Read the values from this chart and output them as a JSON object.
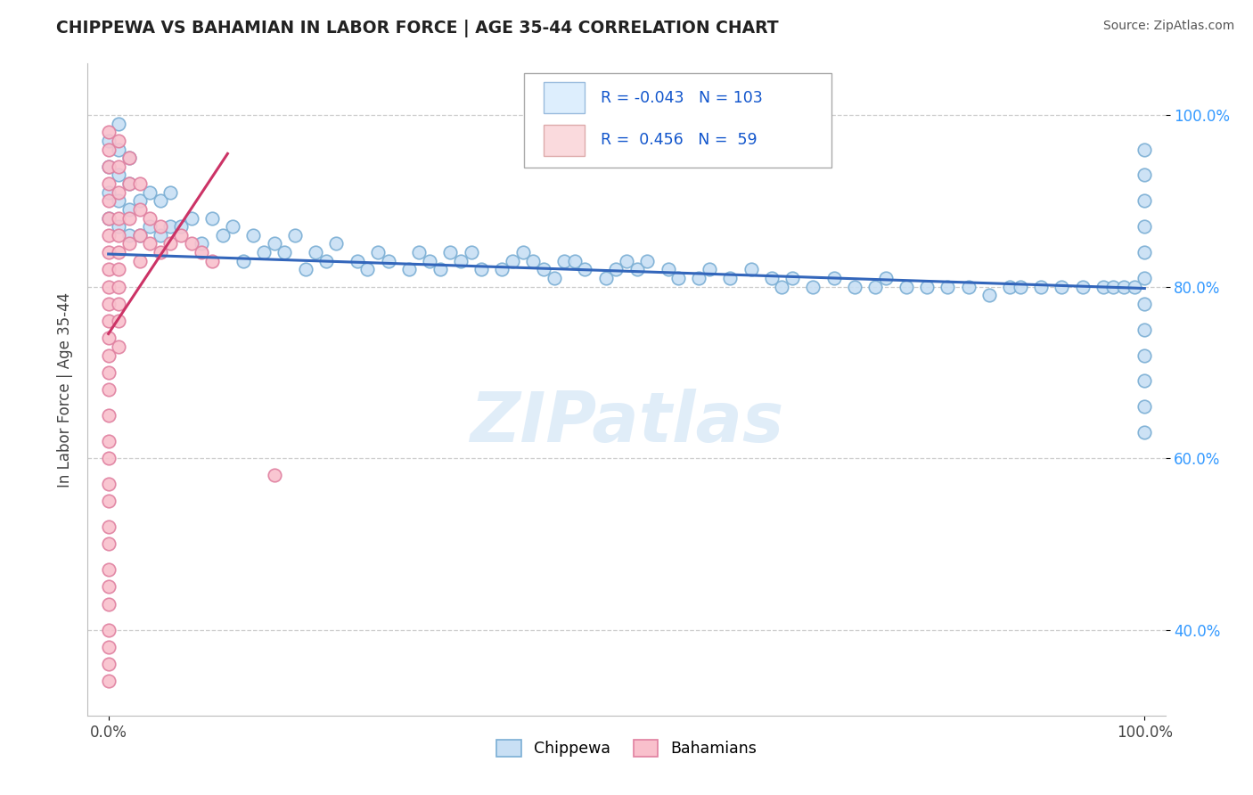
{
  "title": "CHIPPEWA VS BAHAMIAN IN LABOR FORCE | AGE 35-44 CORRELATION CHART",
  "source_text": "Source: ZipAtlas.com",
  "ylabel": "In Labor Force | Age 35-44",
  "xlim": [
    -0.02,
    1.02
  ],
  "ylim": [
    0.3,
    1.06
  ],
  "y_ticks": [
    0.4,
    0.6,
    0.8,
    1.0
  ],
  "y_tick_labels": [
    "40.0%",
    "60.0%",
    "80.0%",
    "100.0%"
  ],
  "watermark": "ZIPatlas",
  "chippewa_fill": "#c8dff4",
  "chippewa_edge": "#7aaed4",
  "bahamian_fill": "#f9c0cc",
  "bahamian_edge": "#e080a0",
  "chippewa_line_color": "#3366bb",
  "bahamian_line_color": "#cc3366",
  "legend_box_color": "#ddeefd",
  "legend_pink_color": "#fadadd",
  "tick_color": "#3399ff",
  "blue_trend_x": [
    0.0,
    1.0
  ],
  "blue_trend_y": [
    0.838,
    0.798
  ],
  "pink_trend_x": [
    0.0,
    0.115
  ],
  "pink_trend_y": [
    0.745,
    0.955
  ],
  "chippewa_x": [
    0.0,
    0.0,
    0.0,
    0.0,
    0.01,
    0.01,
    0.01,
    0.01,
    0.01,
    0.02,
    0.02,
    0.02,
    0.02,
    0.03,
    0.03,
    0.04,
    0.04,
    0.05,
    0.05,
    0.06,
    0.06,
    0.07,
    0.08,
    0.09,
    0.1,
    0.11,
    0.12,
    0.13,
    0.14,
    0.15,
    0.16,
    0.17,
    0.18,
    0.19,
    0.2,
    0.21,
    0.22,
    0.24,
    0.25,
    0.26,
    0.27,
    0.29,
    0.3,
    0.31,
    0.32,
    0.33,
    0.34,
    0.35,
    0.36,
    0.38,
    0.39,
    0.4,
    0.41,
    0.42,
    0.43,
    0.44,
    0.45,
    0.46,
    0.48,
    0.49,
    0.5,
    0.51,
    0.52,
    0.54,
    0.55,
    0.57,
    0.58,
    0.6,
    0.62,
    0.64,
    0.65,
    0.66,
    0.68,
    0.7,
    0.72,
    0.74,
    0.75,
    0.77,
    0.79,
    0.81,
    0.83,
    0.85,
    0.87,
    0.88,
    0.9,
    0.92,
    0.94,
    0.96,
    0.97,
    0.98,
    0.99,
    1.0,
    1.0,
    1.0,
    1.0,
    1.0,
    1.0,
    1.0,
    1.0,
    1.0,
    1.0,
    1.0,
    1.0
  ],
  "chippewa_y": [
    0.88,
    0.91,
    0.94,
    0.97,
    0.87,
    0.9,
    0.93,
    0.96,
    0.99,
    0.86,
    0.89,
    0.92,
    0.95,
    0.86,
    0.9,
    0.87,
    0.91,
    0.86,
    0.9,
    0.87,
    0.91,
    0.87,
    0.88,
    0.85,
    0.88,
    0.86,
    0.87,
    0.83,
    0.86,
    0.84,
    0.85,
    0.84,
    0.86,
    0.82,
    0.84,
    0.83,
    0.85,
    0.83,
    0.82,
    0.84,
    0.83,
    0.82,
    0.84,
    0.83,
    0.82,
    0.84,
    0.83,
    0.84,
    0.82,
    0.82,
    0.83,
    0.84,
    0.83,
    0.82,
    0.81,
    0.83,
    0.83,
    0.82,
    0.81,
    0.82,
    0.83,
    0.82,
    0.83,
    0.82,
    0.81,
    0.81,
    0.82,
    0.81,
    0.82,
    0.81,
    0.8,
    0.81,
    0.8,
    0.81,
    0.8,
    0.8,
    0.81,
    0.8,
    0.8,
    0.8,
    0.8,
    0.79,
    0.8,
    0.8,
    0.8,
    0.8,
    0.8,
    0.8,
    0.8,
    0.8,
    0.8,
    0.96,
    0.93,
    0.9,
    0.87,
    0.84,
    0.81,
    0.78,
    0.75,
    0.72,
    0.69,
    0.66,
    0.63
  ],
  "bahamian_x": [
    0.0,
    0.0,
    0.0,
    0.0,
    0.0,
    0.0,
    0.0,
    0.0,
    0.0,
    0.0,
    0.0,
    0.0,
    0.0,
    0.0,
    0.0,
    0.0,
    0.0,
    0.0,
    0.0,
    0.0,
    0.0,
    0.0,
    0.0,
    0.0,
    0.0,
    0.0,
    0.0,
    0.0,
    0.0,
    0.0,
    0.01,
    0.01,
    0.01,
    0.01,
    0.01,
    0.01,
    0.01,
    0.01,
    0.01,
    0.01,
    0.01,
    0.02,
    0.02,
    0.02,
    0.02,
    0.03,
    0.03,
    0.03,
    0.03,
    0.04,
    0.04,
    0.05,
    0.05,
    0.06,
    0.07,
    0.08,
    0.09,
    0.1,
    0.16
  ],
  "bahamian_y": [
    0.98,
    0.96,
    0.94,
    0.92,
    0.9,
    0.88,
    0.86,
    0.84,
    0.82,
    0.8,
    0.78,
    0.76,
    0.74,
    0.72,
    0.7,
    0.68,
    0.65,
    0.62,
    0.6,
    0.57,
    0.55,
    0.52,
    0.5,
    0.47,
    0.45,
    0.43,
    0.4,
    0.38,
    0.36,
    0.34,
    0.97,
    0.94,
    0.91,
    0.88,
    0.86,
    0.84,
    0.82,
    0.8,
    0.78,
    0.76,
    0.73,
    0.95,
    0.92,
    0.88,
    0.85,
    0.92,
    0.89,
    0.86,
    0.83,
    0.88,
    0.85,
    0.87,
    0.84,
    0.85,
    0.86,
    0.85,
    0.84,
    0.83,
    0.58
  ]
}
